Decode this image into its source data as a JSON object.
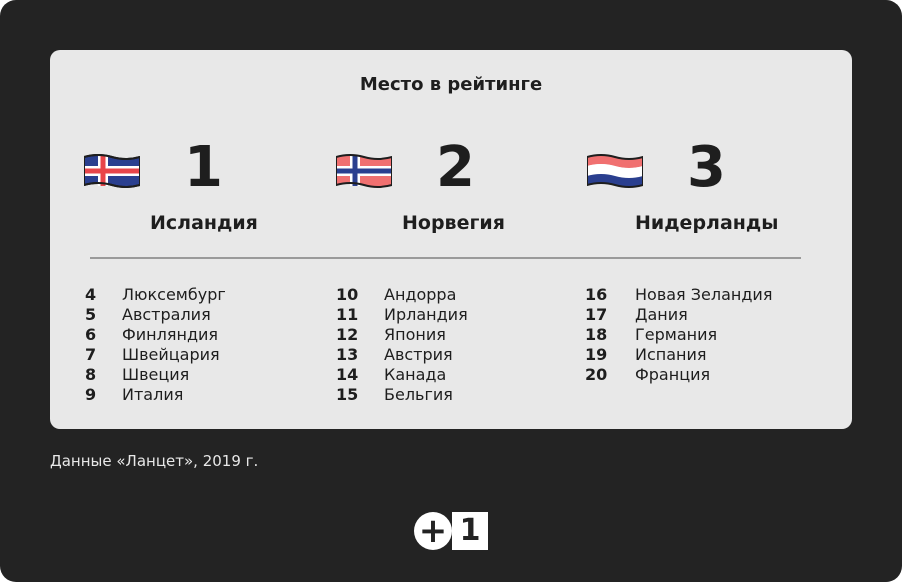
{
  "title": "Место в рейтинге",
  "top3": [
    {
      "rank": "1",
      "country": "Исландия",
      "flag_icon": "iceland-flag-icon"
    },
    {
      "rank": "2",
      "country": "Норвегия",
      "flag_icon": "norway-flag-icon"
    },
    {
      "rank": "3",
      "country": "Нидерланды",
      "flag_icon": "netherlands-flag-icon"
    }
  ],
  "columns": [
    [
      {
        "num": "4",
        "name": "Люксембург"
      },
      {
        "num": "5",
        "name": "Австралия"
      },
      {
        "num": "6",
        "name": "Финляндия"
      },
      {
        "num": "7",
        "name": "Швейцария"
      },
      {
        "num": "8",
        "name": "Швеция"
      },
      {
        "num": "9",
        "name": "Италия"
      }
    ],
    [
      {
        "num": "10",
        "name": "Андорра"
      },
      {
        "num": "11",
        "name": "Ирландия"
      },
      {
        "num": "12",
        "name": "Япония"
      },
      {
        "num": "13",
        "name": "Австрия"
      },
      {
        "num": "14",
        "name": "Канада"
      },
      {
        "num": "15",
        "name": "Бельгия"
      }
    ],
    [
      {
        "num": "16",
        "name": "Новая Зеландия"
      },
      {
        "num": "17",
        "name": "Дания"
      },
      {
        "num": "18",
        "name": "Германия"
      },
      {
        "num": "19",
        "name": "Испания"
      },
      {
        "num": "20",
        "name": "Франция"
      }
    ]
  ],
  "source": "Данные «Ланцет», 2019 г.",
  "logo": {
    "plus": "+",
    "one": "1",
    "icon": "plus-one-logo-icon"
  },
  "colors": {
    "background": "#232323",
    "card": "#e8e8e8",
    "text": "#1e1e1e",
    "iceland_blue": "#2a3f8f",
    "iceland_red": "#e8454a",
    "norway_red": "#f07070",
    "norway_blue": "#2a3f8f",
    "nl_red": "#f07070",
    "nl_blue": "#2a3f8f"
  }
}
